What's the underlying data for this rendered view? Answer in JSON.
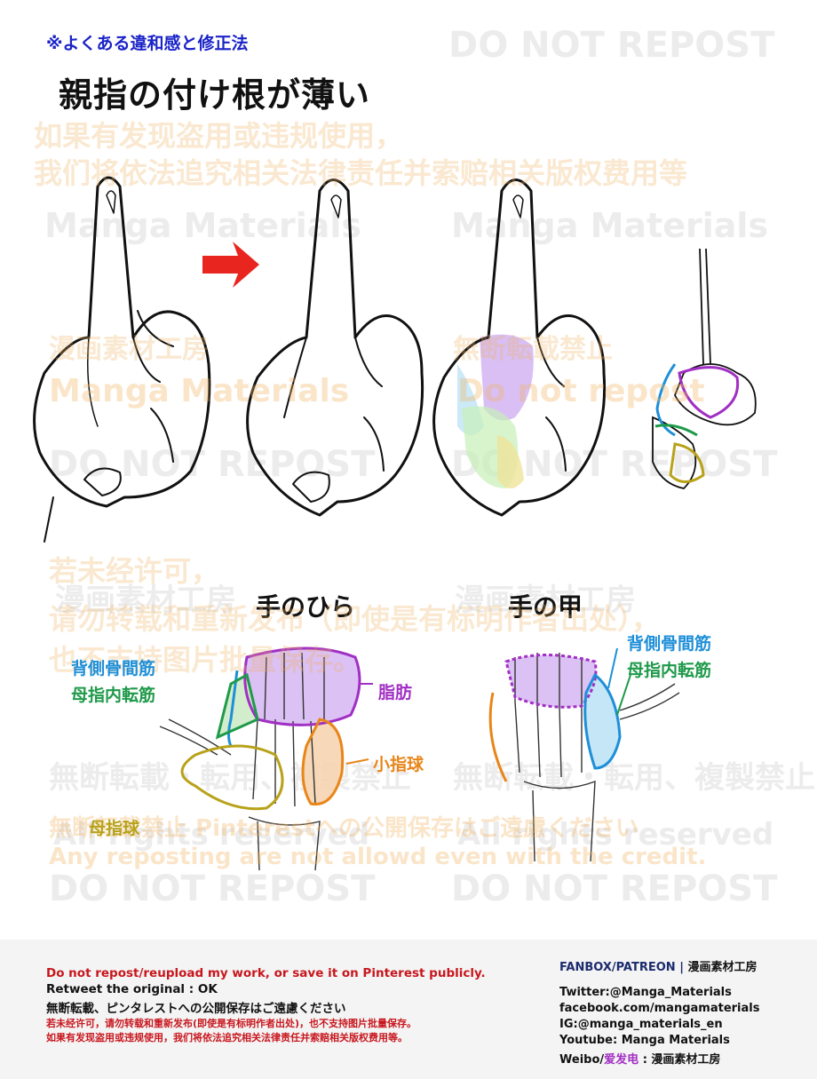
{
  "header": {
    "subtitle": "※よくある違和感と修正法",
    "title": "親指の付け根が薄い"
  },
  "sections": {
    "palm_title": "手のひら",
    "back_title": "手の甲"
  },
  "labels": {
    "palm": {
      "dorsal_interossei": "背側骨間筋",
      "adductor_pollicis": "母指内転筋",
      "fat_pad": "脂肪",
      "hypothenar": "小指球",
      "thenar": "母指球"
    },
    "back": {
      "dorsal_interossei": "背側骨間筋",
      "adductor_pollicis": "母指内転筋"
    }
  },
  "colors": {
    "blue_label": "#1e8fd8",
    "green_label": "#1f9a4a",
    "purple_label": "#a12fc4",
    "orange_label": "#e8861a",
    "olive_label": "#b8a21a",
    "arrow": "#e8251f",
    "subtitle": "#1a23c8"
  },
  "watermarks": {
    "gray_do_not_repost": "DO NOT REPOST",
    "gray_manga_materials": "Manga Materials",
    "gray_studio_jp": "漫画素材工房",
    "gray_no_reprint": "無断転載・転用、複製禁止",
    "gray_no_reprint_short": "無断転載禁止",
    "gray_all_rights": "All rights reserved",
    "orange_cn_1": "如果有发现盗用或违规使用，",
    "orange_cn_2": "我们将依法追究相关法律责任并索赔相关版权费用等",
    "orange_manga": "Manga Materials",
    "orange_do_not_repost": "Do not repost",
    "orange_cn_3": "若未经许可，",
    "orange_cn_4": "请勿转载和重新发布（即使是有标明作者出处），",
    "orange_cn_5": "也不支持图片批量保存。",
    "orange_jp_pinterest": "無断転載禁止 Pinterestへの公開保存はご遠慮ください",
    "orange_en": "Any reposting are not allowd even with the credit."
  },
  "footer": {
    "left": {
      "line1": "Do not repost/reupload my work, or save it on Pinterest publicly.",
      "line2": "Retweet the original : OK",
      "line3": "無断転載、ピンタレストへの公開保存はご遠慮ください",
      "line4": "若未经许可，请勿转载和重新发布(即使是有标明作者出处)，也不支持图片批量保存。",
      "line5": "如果有发现盗用或违规使用，我们将依法追究相关法律责任并索赔相关版权费用等。"
    },
    "right": {
      "fanbox": "FANBOX/PATREON",
      "sep": "|",
      "studio": "漫画素材工房",
      "twitter": "Twitter:@Manga_Materials",
      "facebook": "facebook.com/mangamaterials",
      "ig": "IG:@manga_materials_en",
      "youtube": "Youtube: Manga Materials",
      "weibo_prefix": "Weibo/",
      "weibo_highlight": "爱发电",
      "weibo_suffix": ": 漫画素材工房"
    }
  }
}
